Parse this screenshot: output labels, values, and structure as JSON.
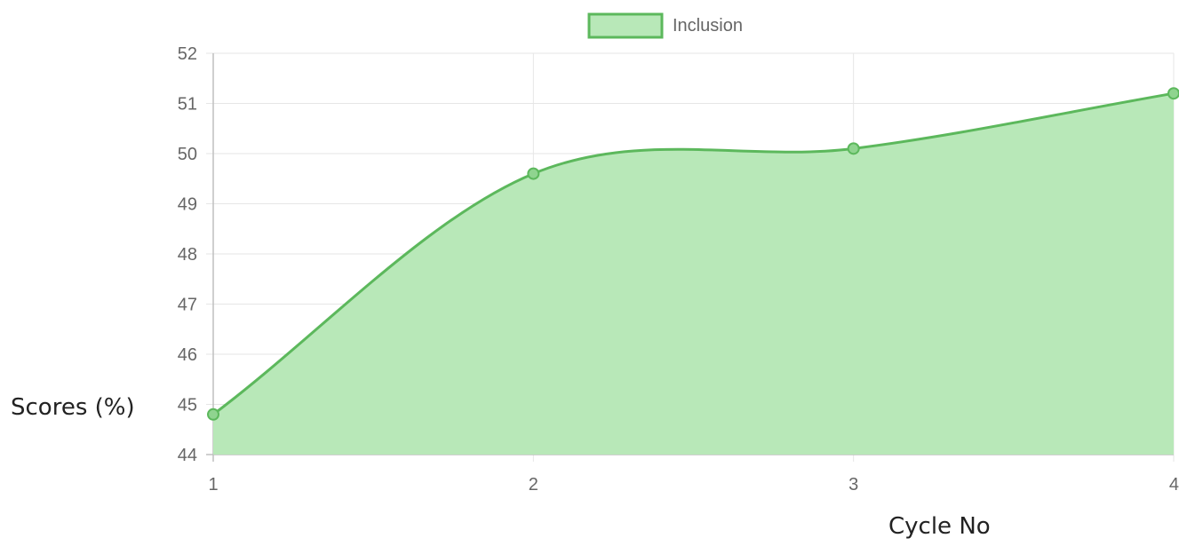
{
  "chart_data": {
    "type": "area",
    "x": [
      1,
      2,
      3,
      4
    ],
    "series": [
      {
        "name": "Inclusion",
        "values": [
          44.8,
          49.6,
          50.1,
          51.2
        ]
      }
    ],
    "xlabel": "Cycle No",
    "ylabel": "Scores (%)",
    "ylim": [
      44,
      52
    ],
    "yticks": [
      "44",
      "45",
      "46",
      "47",
      "48",
      "49",
      "50",
      "51",
      "52"
    ],
    "xticks": [
      "1",
      "2",
      "3",
      "4"
    ],
    "grid": true,
    "legend": "top-center",
    "colors": {
      "line": "#5cb85c",
      "fill": "#b8e8b8",
      "grid": "#e6e6e6"
    }
  }
}
